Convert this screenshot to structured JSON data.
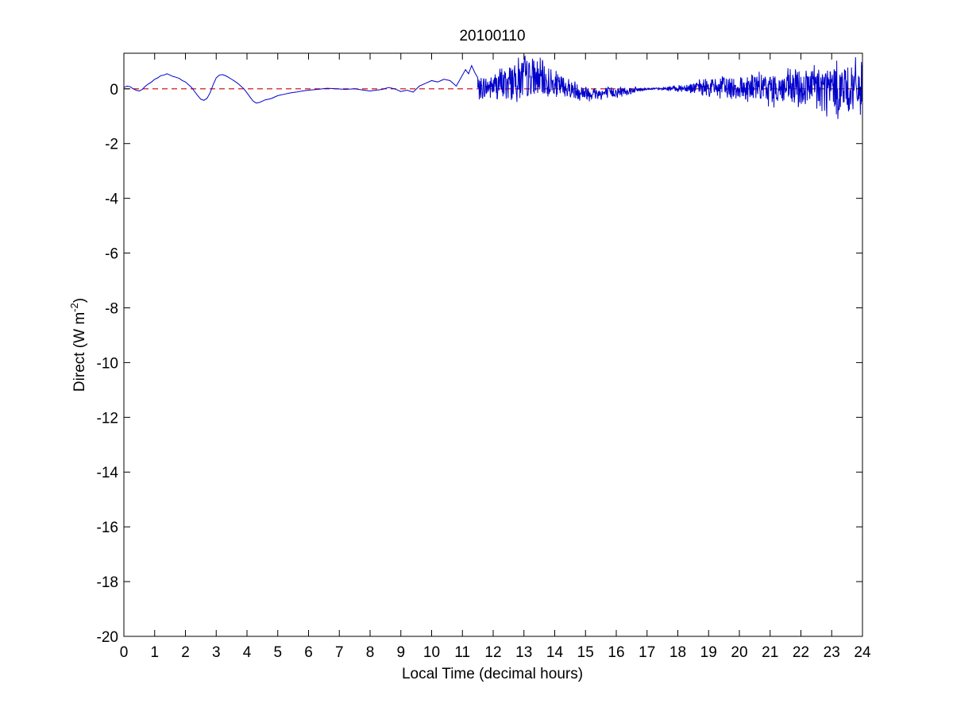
{
  "chart_data": {
    "type": "line",
    "title": "20100110",
    "xlabel": "Local Time (decimal hours)",
    "ylabel": "Direct (W m-2)",
    "ylabel_parts": {
      "main": "Direct (W m",
      "sup": "-2",
      "close": ")"
    },
    "xlim": [
      0,
      24
    ],
    "ylim": [
      -20,
      1.3
    ],
    "xticks": [
      0,
      1,
      2,
      3,
      4,
      5,
      6,
      7,
      8,
      9,
      10,
      11,
      12,
      13,
      14,
      15,
      16,
      17,
      18,
      19,
      20,
      21,
      22,
      23,
      24
    ],
    "yticks": [
      0,
      -2,
      -4,
      -6,
      -8,
      -10,
      -12,
      -14,
      -16,
      -18,
      -20
    ],
    "grid": false,
    "colors": {
      "series": "#0000cc",
      "reference": "#cc0000",
      "axes": "#000000"
    },
    "series": [
      {
        "points": [
          [
            0.0,
            0.05
          ],
          [
            0.1,
            0.1
          ],
          [
            0.2,
            0.08
          ],
          [
            0.3,
            0.0
          ],
          [
            0.4,
            -0.05
          ],
          [
            0.5,
            -0.08
          ],
          [
            0.6,
            -0.02
          ],
          [
            0.7,
            0.1
          ],
          [
            0.8,
            0.18
          ],
          [
            0.9,
            0.25
          ],
          [
            1.0,
            0.35
          ],
          [
            1.1,
            0.4
          ],
          [
            1.2,
            0.48
          ],
          [
            1.3,
            0.5
          ],
          [
            1.4,
            0.55
          ],
          [
            1.5,
            0.5
          ],
          [
            1.6,
            0.45
          ],
          [
            1.7,
            0.42
          ],
          [
            1.8,
            0.38
          ],
          [
            1.9,
            0.3
          ],
          [
            2.0,
            0.25
          ],
          [
            2.1,
            0.15
          ],
          [
            2.2,
            0.05
          ],
          [
            2.3,
            -0.1
          ],
          [
            2.4,
            -0.25
          ],
          [
            2.5,
            -0.38
          ],
          [
            2.6,
            -0.42
          ],
          [
            2.7,
            -0.35
          ],
          [
            2.8,
            -0.15
          ],
          [
            2.9,
            0.15
          ],
          [
            3.0,
            0.4
          ],
          [
            3.1,
            0.5
          ],
          [
            3.2,
            0.52
          ],
          [
            3.3,
            0.48
          ],
          [
            3.4,
            0.42
          ],
          [
            3.5,
            0.35
          ],
          [
            3.6,
            0.28
          ],
          [
            3.7,
            0.2
          ],
          [
            3.8,
            0.1
          ],
          [
            3.9,
            0.0
          ],
          [
            4.0,
            -0.15
          ],
          [
            4.1,
            -0.3
          ],
          [
            4.2,
            -0.45
          ],
          [
            4.3,
            -0.52
          ],
          [
            4.4,
            -0.5
          ],
          [
            4.5,
            -0.45
          ],
          [
            4.6,
            -0.4
          ],
          [
            4.7,
            -0.38
          ],
          [
            4.8,
            -0.35
          ],
          [
            4.9,
            -0.3
          ],
          [
            5.0,
            -0.25
          ],
          [
            5.2,
            -0.2
          ],
          [
            5.4,
            -0.15
          ],
          [
            5.6,
            -0.12
          ],
          [
            5.8,
            -0.08
          ],
          [
            6.0,
            -0.05
          ],
          [
            6.3,
            -0.02
          ],
          [
            6.6,
            0.02
          ],
          [
            6.9,
            0.0
          ],
          [
            7.2,
            -0.02
          ],
          [
            7.5,
            0.0
          ],
          [
            7.8,
            -0.05
          ],
          [
            8.0,
            -0.08
          ],
          [
            8.2,
            -0.05
          ],
          [
            8.4,
            -0.02
          ],
          [
            8.6,
            0.05
          ],
          [
            8.8,
            0.0
          ],
          [
            9.0,
            -0.1
          ],
          [
            9.2,
            -0.05
          ],
          [
            9.4,
            -0.12
          ],
          [
            9.6,
            0.1
          ],
          [
            9.8,
            0.2
          ],
          [
            10.0,
            0.3
          ],
          [
            10.2,
            0.25
          ],
          [
            10.4,
            0.35
          ],
          [
            10.6,
            0.3
          ],
          [
            10.8,
            0.1
          ],
          [
            11.0,
            0.5
          ],
          [
            11.1,
            0.7
          ],
          [
            11.2,
            0.55
          ],
          [
            11.3,
            0.85
          ],
          [
            11.4,
            0.6
          ],
          [
            11.5,
            0.4
          ]
        ],
        "noise": {
          "start": 11.5,
          "end": 24.0,
          "step": 0.012,
          "seed": 7,
          "envelope": [
            [
              11.5,
              0.45
            ],
            [
              12.0,
              0.6
            ],
            [
              12.5,
              0.85
            ],
            [
              13.0,
              1.0
            ],
            [
              13.5,
              0.85
            ],
            [
              14.0,
              0.6
            ],
            [
              14.5,
              0.45
            ],
            [
              15.0,
              0.35
            ],
            [
              15.5,
              0.3
            ],
            [
              16.0,
              0.25
            ],
            [
              16.5,
              0.15
            ],
            [
              17.0,
              0.05
            ],
            [
              17.5,
              0.05
            ],
            [
              18.0,
              0.15
            ],
            [
              18.5,
              0.25
            ],
            [
              19.0,
              0.4
            ],
            [
              19.5,
              0.5
            ],
            [
              20.0,
              0.6
            ],
            [
              20.5,
              0.65
            ],
            [
              21.0,
              0.7
            ],
            [
              21.5,
              0.8
            ],
            [
              22.0,
              0.95
            ],
            [
              22.5,
              1.1
            ],
            [
              23.0,
              1.2
            ],
            [
              23.5,
              1.2
            ],
            [
              24.0,
              1.2
            ]
          ],
          "bias": [
            [
              11.5,
              0.0
            ],
            [
              12.0,
              0.1
            ],
            [
              12.5,
              0.25
            ],
            [
              13.0,
              0.4
            ],
            [
              13.5,
              0.35
            ],
            [
              14.0,
              0.15
            ],
            [
              14.5,
              0.0
            ],
            [
              15.0,
              -0.15
            ],
            [
              15.5,
              -0.18
            ],
            [
              16.0,
              -0.12
            ],
            [
              16.5,
              -0.05
            ],
            [
              17.0,
              0.0
            ],
            [
              17.5,
              0.0
            ],
            [
              18.0,
              0.02
            ],
            [
              18.5,
              0.05
            ],
            [
              19.0,
              0.05
            ],
            [
              20.0,
              0.05
            ],
            [
              21.0,
              0.0
            ],
            [
              22.0,
              0.0
            ],
            [
              23.0,
              0.0
            ],
            [
              24.0,
              0.0
            ]
          ]
        }
      }
    ],
    "reference_line": {
      "y": 0,
      "style": "dashed"
    }
  }
}
